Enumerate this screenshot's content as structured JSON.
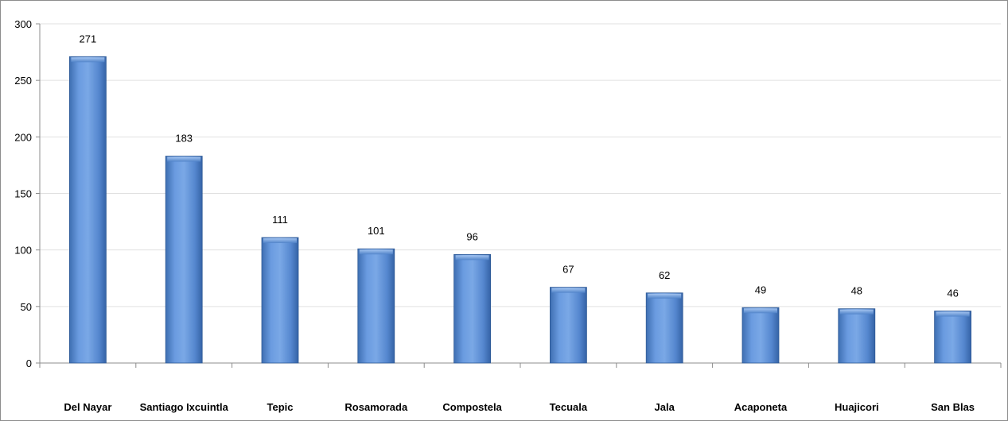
{
  "chart_data": {
    "type": "bar",
    "categories": [
      "Del Nayar",
      "Santiago Ixcuintla",
      "Tepic",
      "Rosamorada",
      "Compostela",
      "Tecuala",
      "Jala",
      "Acaponeta",
      "Huajicori",
      "San Blas"
    ],
    "values": [
      271,
      183,
      111,
      101,
      96,
      67,
      62,
      49,
      48,
      46
    ],
    "title": "",
    "xlabel": "",
    "ylabel": "",
    "ylim": [
      0,
      300
    ],
    "yticks": [
      0,
      50,
      100,
      150,
      200,
      250,
      300
    ],
    "grid": true,
    "legend": "none",
    "colors": {
      "bar": "#5b8fd6",
      "bar_dark": "#3b6fb6",
      "bar_light": "#8fb6ea",
      "grid": "#e0e0e0",
      "axis": "#8c8c8c"
    }
  }
}
